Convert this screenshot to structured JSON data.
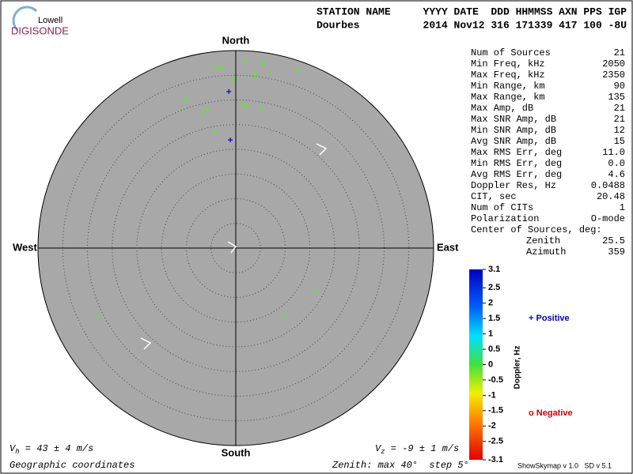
{
  "logo": {
    "top": "Lowell",
    "bottom": "DIGISONDE"
  },
  "header": {
    "row1": [
      "STATION NAME",
      "YYYY DATE  DDD HHMMSS AXN PPS IGP"
    ],
    "row2": [
      "Dourbes",
      "2014 Nov12 316 171339 417 100 -8U"
    ]
  },
  "stats": [
    [
      "Num of Sources",
      "21"
    ],
    [
      "Min Freq, kHz",
      "2050"
    ],
    [
      "Max Freq, kHz",
      "2350"
    ],
    [
      "Min Range, km",
      "90"
    ],
    [
      "Max Range, km",
      "135"
    ],
    [
      "Max Amp, dB",
      "21"
    ],
    [
      "Max SNR Amp, dB",
      "21"
    ],
    [
      "Min SNR Amp, dB",
      "12"
    ],
    [
      "Avg SNR Amp, dB",
      "15"
    ],
    [
      "Max RMS Err, deg",
      "11.0"
    ],
    [
      "Min RMS Err, deg",
      "0.0"
    ],
    [
      "Avg RMS Err, deg",
      "4.6"
    ],
    [
      "Doppler Res, Hz",
      "0.0488"
    ],
    [
      "CIT, sec",
      "20.48"
    ],
    [
      "Num of CITs",
      "1"
    ],
    [
      "Polarization",
      "O-mode"
    ]
  ],
  "center": {
    "title": "Center of Sources, deg:",
    "rows": [
      [
        "Zenith",
        "25.5"
      ],
      [
        "Azimuth",
        "359"
      ]
    ]
  },
  "plot": {
    "north": "North",
    "south": "South",
    "west": "West",
    "east": "East",
    "zenith_max": 40,
    "zenith_step": 5,
    "sources": [
      {
        "east": -4.3,
        "north": 36.6,
        "doppler": -0.2
      },
      {
        "east": -2.9,
        "north": 36.6,
        "doppler": -0.2
      },
      {
        "east": 1.9,
        "north": 37.9,
        "doppler": -0.2
      },
      {
        "east": 5.6,
        "north": 37.3,
        "doppler": -0.2
      },
      {
        "east": 12.5,
        "north": 36.3,
        "doppler": -0.2
      },
      {
        "east": 3.8,
        "north": 35.4,
        "doppler": -0.2
      },
      {
        "east": 4.2,
        "north": 34.7,
        "doppler": -0.2
      },
      {
        "east": 7.0,
        "north": 35.5,
        "doppler": -0.2
      },
      {
        "east": -0.5,
        "north": 34.2,
        "doppler": -0.2
      },
      {
        "east": -10.1,
        "north": 30.1,
        "doppler": -0.2
      },
      {
        "east": 1.0,
        "north": 29.4,
        "doppler": -0.2
      },
      {
        "east": 1.9,
        "north": 28.8,
        "doppler": -0.2
      },
      {
        "east": 5.1,
        "north": 28.2,
        "doppler": -0.2
      },
      {
        "east": -6.7,
        "north": 27.7,
        "doppler": -0.2
      },
      {
        "east": -5.8,
        "north": 28.2,
        "doppler": -0.2
      },
      {
        "east": -4.0,
        "north": 23.5,
        "doppler": -0.2
      },
      {
        "east": 16.3,
        "north": -8.8,
        "doppler": -0.2
      },
      {
        "east": 9.9,
        "north": -13.4,
        "doppler": -0.2
      },
      {
        "east": -27.8,
        "north": -13.8,
        "doppler": -0.2
      },
      {
        "east": -1.4,
        "north": 31.7,
        "doppler": 2.9
      },
      {
        "east": -1.1,
        "north": 21.9,
        "doppler": 2.9
      }
    ]
  },
  "vh": {
    "symbol": "V",
    "sub": "h",
    "text": " = 43 ± 4 m/s"
  },
  "vz": {
    "symbol": "V",
    "sub": "z",
    "text": " = -9 ± 1 m/s"
  },
  "footer": {
    "left": "Geographic coordinates",
    "zenith": "Zenith: max 40°  step 5°",
    "right": "ShowSkymap v 1.0   SD v 5.1"
  },
  "colorbar": {
    "label": "Doppler, Hz",
    "lim": [
      -3.1,
      3.1
    ],
    "ticks": [
      3.1,
      2.5,
      2,
      1.5,
      1,
      0.5,
      0,
      -0.5,
      -1,
      -1.5,
      -2,
      -2.5,
      -3.1
    ]
  },
  "legend": {
    "positive": "Positive",
    "negative": "Negative"
  }
}
